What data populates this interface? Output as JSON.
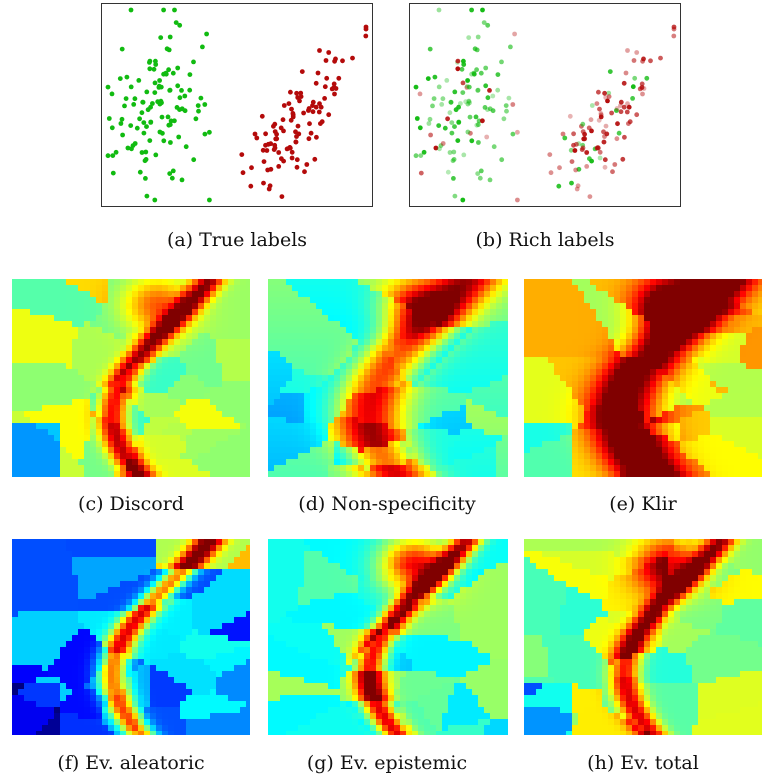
{
  "captions": {
    "a": "(a) True labels",
    "b": "(b) Rich labels",
    "c": "(c) Discord",
    "d": "(d) Non-specificity",
    "e": "(e) Klir",
    "f": "(f) Ev. aleatoric",
    "g": "(g) Ev. epistemic",
    "h": "(h) Ev. total"
  },
  "colors": {
    "class_green": "#11bb11",
    "class_red": "#b40a0a",
    "colormap": "jet"
  }
}
